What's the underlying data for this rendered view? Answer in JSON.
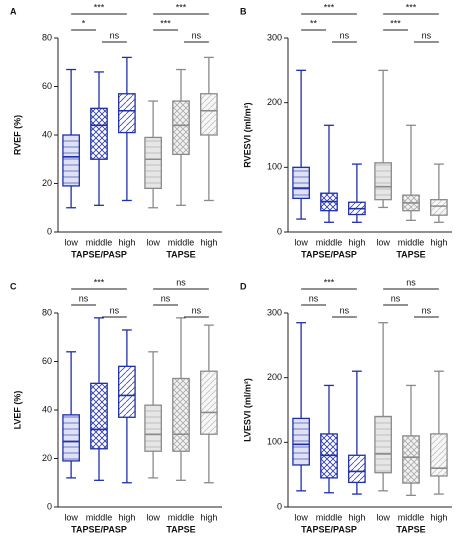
{
  "chart_data": [
    {
      "type": "box",
      "panel": "A",
      "ylabel": "RVEF (%)",
      "ylim": [
        0,
        80
      ],
      "yticks": [
        0,
        20,
        40,
        60,
        80
      ],
      "categories": [
        "low",
        "middle",
        "high",
        "low",
        "middle",
        "high"
      ],
      "groups": [
        {
          "label": "TAPSE/PASP",
          "color": "#1f2fa8",
          "significance": [
            "***",
            "*",
            "ns"
          ]
        },
        {
          "label": "TAPSE",
          "color": "#8a8a8a",
          "significance": [
            "***",
            "***",
            "ns"
          ]
        }
      ],
      "boxes": [
        {
          "min": 10,
          "q1": 19,
          "median": 31,
          "q3": 40,
          "max": 67
        },
        {
          "min": 11,
          "q1": 30,
          "median": 44,
          "q3": 51,
          "max": 66
        },
        {
          "min": 13,
          "q1": 41,
          "median": 50,
          "q3": 57,
          "max": 72
        },
        {
          "min": 10,
          "q1": 18,
          "median": 30,
          "q3": 39,
          "max": 54
        },
        {
          "min": 11,
          "q1": 32,
          "median": 44,
          "q3": 54,
          "max": 67
        },
        {
          "min": 13,
          "q1": 40,
          "median": 50,
          "q3": 57,
          "max": 72
        }
      ]
    },
    {
      "type": "box",
      "panel": "B",
      "ylabel": "RVESVI (ml/m²)",
      "ylim": [
        0,
        300
      ],
      "yticks": [
        0,
        100,
        200,
        300
      ],
      "categories": [
        "low",
        "middle",
        "high",
        "low",
        "middle",
        "high"
      ],
      "groups": [
        {
          "label": "TAPSE/PASP",
          "color": "#1f2fa8",
          "significance": [
            "***",
            "**",
            "ns"
          ]
        },
        {
          "label": "TAPSE",
          "color": "#8a8a8a",
          "significance": [
            "***",
            "***",
            "ns"
          ]
        }
      ],
      "boxes": [
        {
          "min": 20,
          "q1": 52,
          "median": 68,
          "q3": 100,
          "max": 250
        },
        {
          "min": 15,
          "q1": 33,
          "median": 47,
          "q3": 60,
          "max": 165
        },
        {
          "min": 15,
          "q1": 27,
          "median": 36,
          "q3": 46,
          "max": 105
        },
        {
          "min": 38,
          "q1": 50,
          "median": 70,
          "q3": 107,
          "max": 250
        },
        {
          "min": 18,
          "q1": 33,
          "median": 45,
          "q3": 57,
          "max": 165
        },
        {
          "min": 15,
          "q1": 26,
          "median": 40,
          "q3": 50,
          "max": 105
        }
      ]
    },
    {
      "type": "box",
      "panel": "C",
      "ylabel": "LVEF (%)",
      "ylim": [
        0,
        80
      ],
      "yticks": [
        0,
        20,
        40,
        60,
        80
      ],
      "categories": [
        "low",
        "middle",
        "high",
        "low",
        "middle",
        "high"
      ],
      "groups": [
        {
          "label": "TAPSE/PASP",
          "color": "#1f2fa8",
          "significance": [
            "***",
            "ns",
            "ns"
          ]
        },
        {
          "label": "TAPSE",
          "color": "#8a8a8a",
          "significance": [
            "ns",
            "ns",
            "ns"
          ]
        }
      ],
      "boxes": [
        {
          "min": 12,
          "q1": 19,
          "median": 27,
          "q3": 38,
          "max": 64
        },
        {
          "min": 11,
          "q1": 24,
          "median": 32,
          "q3": 51,
          "max": 78
        },
        {
          "min": 10,
          "q1": 37,
          "median": 46,
          "q3": 58,
          "max": 73
        },
        {
          "min": 12,
          "q1": 23,
          "median": 30,
          "q3": 42,
          "max": 64
        },
        {
          "min": 11,
          "q1": 23,
          "median": 30,
          "q3": 53,
          "max": 78
        },
        {
          "min": 10,
          "q1": 30,
          "median": 39,
          "q3": 56,
          "max": 75
        }
      ]
    },
    {
      "type": "box",
      "panel": "D",
      "ylabel": "LVESVI (ml/m²)",
      "ylim": [
        0,
        300
      ],
      "yticks": [
        0,
        100,
        200,
        300
      ],
      "categories": [
        "low",
        "middle",
        "high",
        "low",
        "middle",
        "high"
      ],
      "groups": [
        {
          "label": "TAPSE/PASP",
          "color": "#1f2fa8",
          "significance": [
            "***",
            "ns",
            "ns"
          ]
        },
        {
          "label": "TAPSE",
          "color": "#8a8a8a",
          "significance": [
            "ns",
            "ns",
            "ns"
          ]
        }
      ],
      "boxes": [
        {
          "min": 25,
          "q1": 65,
          "median": 97,
          "q3": 137,
          "max": 285
        },
        {
          "min": 22,
          "q1": 45,
          "median": 80,
          "q3": 113,
          "max": 188
        },
        {
          "min": 20,
          "q1": 38,
          "median": 55,
          "q3": 80,
          "max": 210
        },
        {
          "min": 25,
          "q1": 53,
          "median": 82,
          "q3": 140,
          "max": 285
        },
        {
          "min": 18,
          "q1": 37,
          "median": 77,
          "q3": 110,
          "max": 188
        },
        {
          "min": 20,
          "q1": 48,
          "median": 60,
          "q3": 113,
          "max": 210
        }
      ]
    }
  ]
}
